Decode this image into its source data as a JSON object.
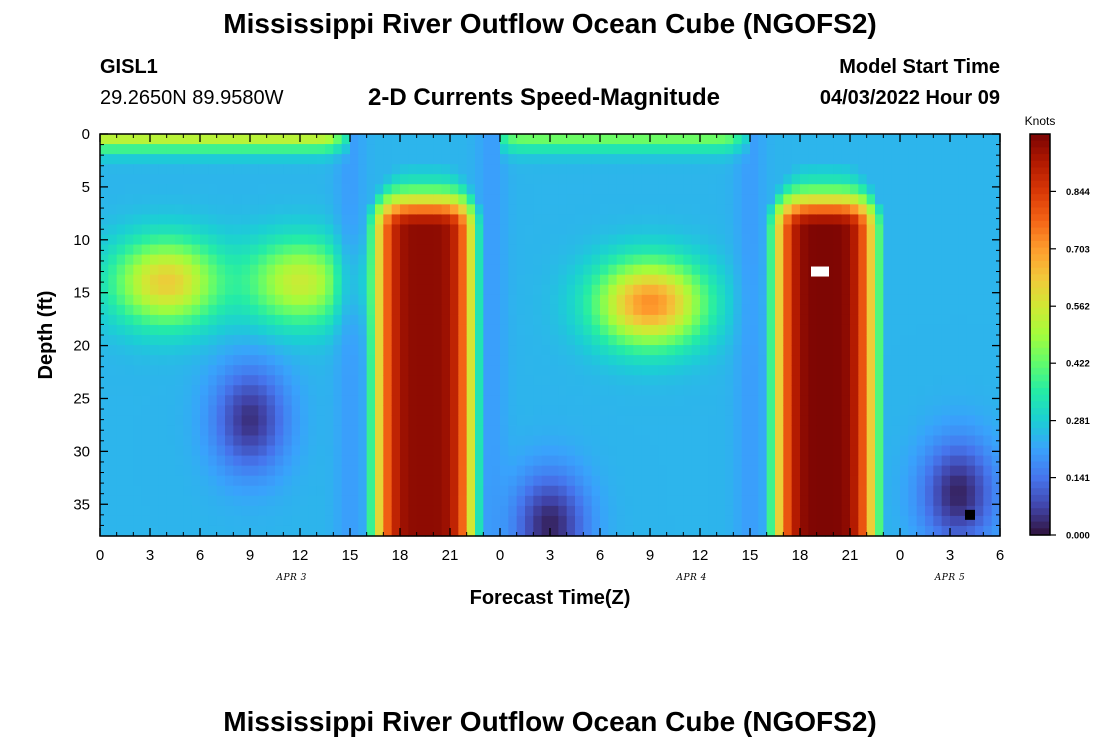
{
  "header": {
    "title": "Mississippi River Outflow Ocean Cube (NGOFS2)",
    "station": "GISL1",
    "coords": "29.2650N  89.9580W",
    "subtitle": "2-D Currents Speed-Magnitude",
    "start_label": "Model Start Time",
    "start_value": "04/03/2022 Hour 09"
  },
  "footer": {
    "title": "Mississippi River Outflow Ocean Cube (NGOFS2)"
  },
  "chart_data": {
    "type": "heatmap",
    "title": "2-D Currents Speed-Magnitude",
    "xlabel": "Forecast Time(Z)",
    "ylabel": "Depth (ft)",
    "xlim": [
      0,
      54
    ],
    "ylim": [
      0,
      38
    ],
    "x_ticks": [
      0,
      3,
      6,
      9,
      12,
      15,
      18,
      21,
      24,
      27,
      30,
      33,
      36,
      39,
      42,
      45,
      48,
      51,
      54
    ],
    "x_tick_labels": [
      "0",
      "3",
      "6",
      "9",
      "12",
      "15",
      "18",
      "21",
      "0",
      "3",
      "6",
      "9",
      "12",
      "15",
      "18",
      "21",
      "0",
      "3",
      "6"
    ],
    "date_labels": [
      {
        "text": "APR 3",
        "x": 11.5
      },
      {
        "text": "APR 4",
        "x": 35.5
      },
      {
        "text": "APR 5",
        "x": 51
      }
    ],
    "y_ticks": [
      0,
      5,
      10,
      15,
      20,
      25,
      30,
      35
    ],
    "y_tick_labels": [
      "0",
      "5",
      "10",
      "15",
      "20",
      "25",
      "30",
      "35"
    ],
    "colorbar": {
      "label": "Knots",
      "min": 0.0,
      "max": 0.985,
      "ticks": [
        0.0,
        0.141,
        0.281,
        0.422,
        0.562,
        0.703,
        0.844
      ],
      "tick_labels": [
        "0.000",
        "0.141",
        "0.281",
        "0.422",
        "0.562",
        "0.703",
        "0.844"
      ],
      "colormap": [
        "#30123b",
        "#4145ab",
        "#4675ed",
        "#39a2fc",
        "#1bcfd4",
        "#24eca6",
        "#61fc6c",
        "#a4fc3b",
        "#d1e834",
        "#f3c63a",
        "#fe9b2d",
        "#f36315",
        "#d93806",
        "#b11901",
        "#7a0403"
      ]
    },
    "features": [
      {
        "kind": "surface_band",
        "x_range": [
          0,
          15
        ],
        "depth_range": [
          0,
          2
        ],
        "speed": 0.55
      },
      {
        "kind": "surface_band",
        "x_range": [
          24,
          39
        ],
        "depth_range": [
          0,
          2
        ],
        "speed": 0.45
      },
      {
        "kind": "peak",
        "x": 19.5,
        "depth": 18,
        "speed": 0.96,
        "x_span": [
          16,
          23
        ],
        "depth_span": [
          9,
          38
        ]
      },
      {
        "kind": "peak",
        "x": 43.5,
        "depth": 18,
        "speed": 0.98,
        "x_span": [
          40,
          47
        ],
        "depth_span": [
          9,
          38
        ]
      },
      {
        "kind": "blob",
        "x": 4,
        "depth": 14,
        "speed": 0.62
      },
      {
        "kind": "blob",
        "x": 12,
        "depth": 14,
        "speed": 0.55
      },
      {
        "kind": "blob",
        "x": 33,
        "depth": 16,
        "speed": 0.72
      },
      {
        "kind": "minimum",
        "x": 27,
        "depth": 37,
        "speed": 0.0
      },
      {
        "kind": "minimum",
        "x": 51.5,
        "depth": 34,
        "speed": 0.0
      },
      {
        "kind": "minimum",
        "x": 9,
        "depth": 27,
        "speed": 0.02
      }
    ],
    "markers": [
      {
        "kind": "white_box",
        "x": 43.2,
        "depth": 13
      },
      {
        "kind": "black_box",
        "x": 52.2,
        "depth": 36
      }
    ]
  }
}
